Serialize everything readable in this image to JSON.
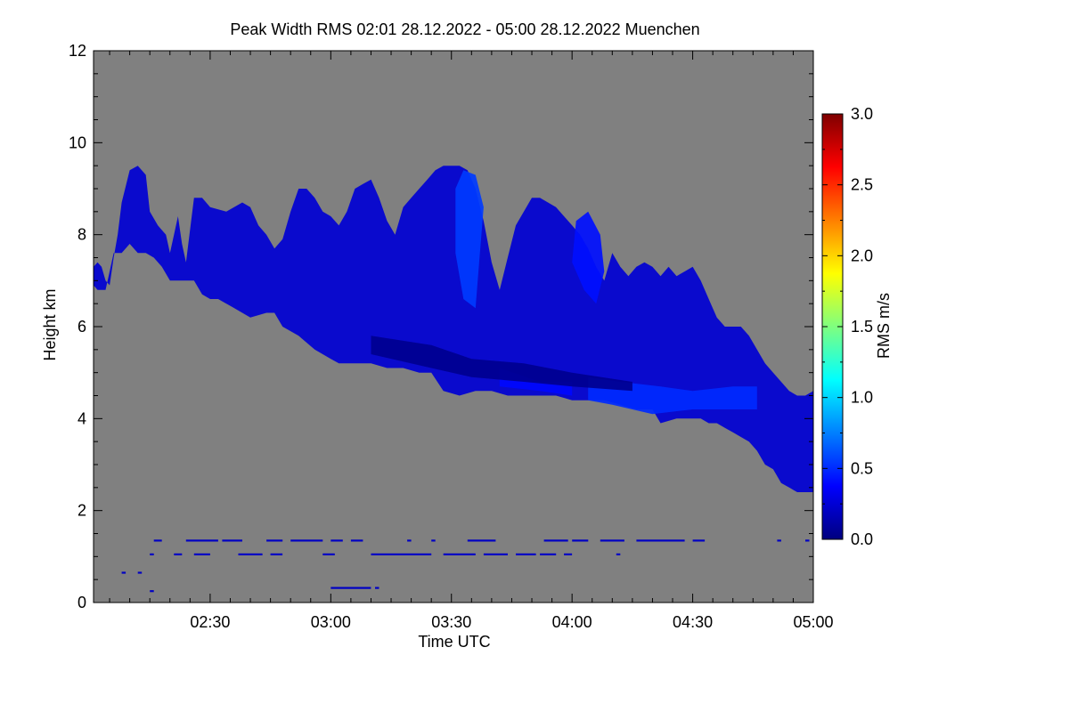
{
  "chart_data": {
    "type": "heatmap",
    "title": "Peak Width RMS   02:01 28.12.2022 - 05:00 28.12.2022 Muenchen",
    "xlabel": "Time UTC",
    "ylabel": "Height km",
    "xlim_minutes_utc": [
      121,
      300
    ],
    "ylim": [
      0,
      12
    ],
    "x_ticks": [
      {
        "value": 150,
        "label": "02:30"
      },
      {
        "value": 180,
        "label": "03:00"
      },
      {
        "value": 210,
        "label": "03:30"
      },
      {
        "value": 240,
        "label": "04:00"
      },
      {
        "value": 270,
        "label": "04:30"
      },
      {
        "value": 300,
        "label": "05:00"
      }
    ],
    "y_ticks": [
      {
        "value": 0,
        "label": "0"
      },
      {
        "value": 2,
        "label": "2"
      },
      {
        "value": 4,
        "label": "4"
      },
      {
        "value": 6,
        "label": "6"
      },
      {
        "value": 8,
        "label": "8"
      },
      {
        "value": 10,
        "label": "10"
      },
      {
        "value": 12,
        "label": "12"
      }
    ],
    "colorbar": {
      "label": "RMS m/s",
      "range": [
        0,
        3
      ],
      "ticks": [
        {
          "value": 0,
          "label": "0.0"
        },
        {
          "value": 0.5,
          "label": "0.5"
        },
        {
          "value": 1.0,
          "label": "1.0"
        },
        {
          "value": 1.5,
          "label": "1.5"
        },
        {
          "value": 2.0,
          "label": "2.0"
        },
        {
          "value": 2.5,
          "label": "2.5"
        },
        {
          "value": 3.0,
          "label": "3.0"
        }
      ],
      "colormap": [
        "#00007f",
        "#0000ff",
        "#007fff",
        "#00ffff",
        "#7fff7f",
        "#ffff00",
        "#ff7f00",
        "#ff0000",
        "#7f0000"
      ]
    },
    "background_color": "#808080",
    "echo_regions": [
      {
        "name": "cloud-band",
        "value": 0.25,
        "boundary": [
          [
            121,
            7.3
          ],
          [
            122,
            7.4
          ],
          [
            123,
            7.3
          ],
          [
            124,
            7.0
          ],
          [
            125,
            6.9
          ],
          [
            126,
            7.5
          ],
          [
            127,
            8.0
          ],
          [
            128,
            8.7
          ],
          [
            130,
            9.4
          ],
          [
            132,
            9.5
          ],
          [
            134,
            9.3
          ],
          [
            135,
            8.5
          ],
          [
            137,
            8.2
          ],
          [
            139,
            8.0
          ],
          [
            140,
            7.6
          ],
          [
            141,
            8.0
          ],
          [
            142,
            8.4
          ],
          [
            143,
            7.8
          ],
          [
            144,
            7.4
          ],
          [
            146,
            8.8
          ],
          [
            148,
            8.8
          ],
          [
            150,
            8.6
          ],
          [
            154,
            8.5
          ],
          [
            158,
            8.7
          ],
          [
            160,
            8.6
          ],
          [
            162,
            8.2
          ],
          [
            164,
            8.0
          ],
          [
            166,
            7.7
          ],
          [
            168,
            7.9
          ],
          [
            170,
            8.5
          ],
          [
            172,
            9.0
          ],
          [
            174,
            9.0
          ],
          [
            176,
            8.8
          ],
          [
            178,
            8.5
          ],
          [
            180,
            8.4
          ],
          [
            182,
            8.2
          ],
          [
            184,
            8.5
          ],
          [
            186,
            9.0
          ],
          [
            188,
            9.1
          ],
          [
            190,
            9.2
          ],
          [
            192,
            8.8
          ],
          [
            194,
            8.3
          ],
          [
            196,
            8.0
          ],
          [
            198,
            8.6
          ],
          [
            200,
            8.8
          ],
          [
            202,
            9.0
          ],
          [
            204,
            9.2
          ],
          [
            206,
            9.4
          ],
          [
            208,
            9.5
          ],
          [
            210,
            9.5
          ],
          [
            212,
            9.5
          ],
          [
            214,
            9.4
          ],
          [
            216,
            9.0
          ],
          [
            218,
            8.3
          ],
          [
            220,
            7.4
          ],
          [
            222,
            6.8
          ],
          [
            224,
            7.5
          ],
          [
            226,
            8.2
          ],
          [
            228,
            8.5
          ],
          [
            230,
            8.8
          ],
          [
            232,
            8.8
          ],
          [
            234,
            8.7
          ],
          [
            236,
            8.6
          ],
          [
            238,
            8.4
          ],
          [
            240,
            8.2
          ],
          [
            242,
            8.0
          ],
          [
            244,
            7.7
          ],
          [
            246,
            7.3
          ],
          [
            248,
            7.0
          ],
          [
            250,
            7.6
          ],
          [
            252,
            7.3
          ],
          [
            254,
            7.1
          ],
          [
            256,
            7.3
          ],
          [
            258,
            7.4
          ],
          [
            260,
            7.3
          ],
          [
            262,
            7.1
          ],
          [
            264,
            7.3
          ],
          [
            266,
            7.1
          ],
          [
            268,
            7.2
          ],
          [
            270,
            7.3
          ],
          [
            272,
            7.0
          ],
          [
            274,
            6.6
          ],
          [
            276,
            6.2
          ],
          [
            278,
            6.0
          ],
          [
            280,
            6.0
          ],
          [
            282,
            6.0
          ],
          [
            284,
            5.8
          ],
          [
            286,
            5.5
          ],
          [
            288,
            5.2
          ],
          [
            290,
            5.0
          ],
          [
            292,
            4.8
          ],
          [
            294,
            4.6
          ],
          [
            296,
            4.5
          ],
          [
            298,
            4.5
          ],
          [
            300,
            4.6
          ],
          [
            300,
            2.4
          ],
          [
            298,
            2.4
          ],
          [
            296,
            2.4
          ],
          [
            294,
            2.5
          ],
          [
            292,
            2.6
          ],
          [
            290,
            2.9
          ],
          [
            288,
            3.0
          ],
          [
            286,
            3.3
          ],
          [
            284,
            3.5
          ],
          [
            282,
            3.6
          ],
          [
            280,
            3.7
          ],
          [
            278,
            3.8
          ],
          [
            276,
            3.9
          ],
          [
            274,
            3.9
          ],
          [
            272,
            4.0
          ],
          [
            270,
            4.0
          ],
          [
            266,
            4.0
          ],
          [
            262,
            3.9
          ],
          [
            260,
            4.2
          ],
          [
            256,
            4.2
          ],
          [
            252,
            4.3
          ],
          [
            248,
            4.4
          ],
          [
            244,
            4.4
          ],
          [
            240,
            4.4
          ],
          [
            236,
            4.5
          ],
          [
            232,
            4.5
          ],
          [
            228,
            4.5
          ],
          [
            224,
            4.5
          ],
          [
            220,
            4.6
          ],
          [
            216,
            4.6
          ],
          [
            212,
            4.5
          ],
          [
            208,
            4.6
          ],
          [
            205,
            5.0
          ],
          [
            202,
            5.0
          ],
          [
            198,
            5.1
          ],
          [
            194,
            5.1
          ],
          [
            190,
            5.2
          ],
          [
            187,
            5.2
          ],
          [
            184,
            5.2
          ],
          [
            182,
            5.2
          ],
          [
            180,
            5.3
          ],
          [
            176,
            5.5
          ],
          [
            172,
            5.8
          ],
          [
            168,
            6.0
          ],
          [
            166,
            6.3
          ],
          [
            164,
            6.3
          ],
          [
            160,
            6.2
          ],
          [
            156,
            6.4
          ],
          [
            152,
            6.6
          ],
          [
            150,
            6.6
          ],
          [
            148,
            6.7
          ],
          [
            146,
            7.0
          ],
          [
            144,
            7.0
          ],
          [
            142,
            7.0
          ],
          [
            140,
            7.0
          ],
          [
            138,
            7.3
          ],
          [
            136,
            7.5
          ],
          [
            134,
            7.6
          ],
          [
            132,
            7.6
          ],
          [
            130,
            7.8
          ],
          [
            128,
            7.6
          ],
          [
            126,
            7.6
          ],
          [
            124,
            6.8
          ],
          [
            122,
            6.8
          ],
          [
            121,
            6.9
          ]
        ]
      },
      {
        "name": "core-0330-0350",
        "value": 0.55,
        "boundary": [
          [
            211,
            9.0
          ],
          [
            213,
            9.4
          ],
          [
            216,
            9.3
          ],
          [
            218,
            8.6
          ],
          [
            217,
            7.5
          ],
          [
            216,
            6.4
          ],
          [
            213,
            6.6
          ],
          [
            211,
            7.6
          ]
        ]
      },
      {
        "name": "core-0358-0415",
        "value": 0.42,
        "boundary": [
          [
            241,
            8.3
          ],
          [
            244,
            8.5
          ],
          [
            247,
            8.0
          ],
          [
            248,
            7.2
          ],
          [
            246,
            6.5
          ],
          [
            243,
            6.8
          ],
          [
            240,
            7.4
          ]
        ]
      },
      {
        "name": "lower-layer-0400-0440",
        "value": 0.5,
        "boundary": [
          [
            244,
            4.9
          ],
          [
            252,
            4.8
          ],
          [
            262,
            4.7
          ],
          [
            270,
            4.6
          ],
          [
            280,
            4.7
          ],
          [
            286,
            4.7
          ],
          [
            286,
            4.2
          ],
          [
            278,
            4.2
          ],
          [
            270,
            4.2
          ],
          [
            260,
            4.1
          ],
          [
            250,
            4.3
          ],
          [
            244,
            4.4
          ]
        ]
      },
      {
        "name": "layer-0345-0400",
        "value": 0.4,
        "boundary": [
          [
            222,
            5.1
          ],
          [
            232,
            4.8
          ],
          [
            240,
            4.8
          ],
          [
            240,
            4.5
          ],
          [
            232,
            4.6
          ],
          [
            222,
            4.7
          ]
        ]
      },
      {
        "name": "dense-layer-0330",
        "value": 0.05,
        "boundary": [
          [
            190,
            5.8
          ],
          [
            205,
            5.6
          ],
          [
            215,
            5.3
          ],
          [
            228,
            5.2
          ],
          [
            240,
            5.0
          ],
          [
            255,
            4.8
          ],
          [
            255,
            4.6
          ],
          [
            240,
            4.7
          ],
          [
            228,
            4.8
          ],
          [
            215,
            4.9
          ],
          [
            205,
            5.1
          ],
          [
            190,
            5.4
          ]
        ]
      }
    ],
    "clutter_segments": [
      {
        "x0": 136,
        "x1": 138,
        "height": 1.35
      },
      {
        "x0": 144,
        "x1": 152,
        "height": 1.35
      },
      {
        "x0": 153,
        "x1": 158,
        "height": 1.35
      },
      {
        "x0": 164,
        "x1": 168,
        "height": 1.35
      },
      {
        "x0": 170,
        "x1": 178,
        "height": 1.35
      },
      {
        "x0": 180,
        "x1": 183,
        "height": 1.35
      },
      {
        "x0": 185,
        "x1": 188,
        "height": 1.35
      },
      {
        "x0": 199,
        "x1": 200,
        "height": 1.35
      },
      {
        "x0": 205,
        "x1": 206,
        "height": 1.35
      },
      {
        "x0": 214,
        "x1": 221,
        "height": 1.35
      },
      {
        "x0": 233,
        "x1": 239,
        "height": 1.35
      },
      {
        "x0": 240,
        "x1": 244,
        "height": 1.35
      },
      {
        "x0": 247,
        "x1": 253,
        "height": 1.35
      },
      {
        "x0": 256,
        "x1": 268,
        "height": 1.35
      },
      {
        "x0": 270,
        "x1": 273,
        "height": 1.35
      },
      {
        "x0": 291,
        "x1": 292,
        "height": 1.35
      },
      {
        "x0": 298,
        "x1": 299,
        "height": 1.35
      },
      {
        "x0": 135,
        "x1": 136,
        "height": 1.05
      },
      {
        "x0": 141,
        "x1": 143,
        "height": 1.05
      },
      {
        "x0": 146,
        "x1": 150,
        "height": 1.05
      },
      {
        "x0": 157,
        "x1": 163,
        "height": 1.05
      },
      {
        "x0": 165,
        "x1": 168,
        "height": 1.05
      },
      {
        "x0": 178,
        "x1": 181,
        "height": 1.05
      },
      {
        "x0": 190,
        "x1": 205,
        "height": 1.05
      },
      {
        "x0": 208,
        "x1": 216,
        "height": 1.05
      },
      {
        "x0": 218,
        "x1": 224,
        "height": 1.05
      },
      {
        "x0": 226,
        "x1": 231,
        "height": 1.05
      },
      {
        "x0": 232,
        "x1": 236,
        "height": 1.05
      },
      {
        "x0": 238,
        "x1": 240,
        "height": 1.05
      },
      {
        "x0": 251,
        "x1": 252,
        "height": 1.05
      },
      {
        "x0": 128,
        "x1": 129,
        "height": 0.65
      },
      {
        "x0": 132,
        "x1": 133,
        "height": 0.65
      },
      {
        "x0": 180,
        "x1": 190,
        "height": 0.32
      },
      {
        "x0": 191,
        "x1": 192,
        "height": 0.32
      },
      {
        "x0": 135,
        "x1": 136,
        "height": 0.25
      }
    ]
  }
}
